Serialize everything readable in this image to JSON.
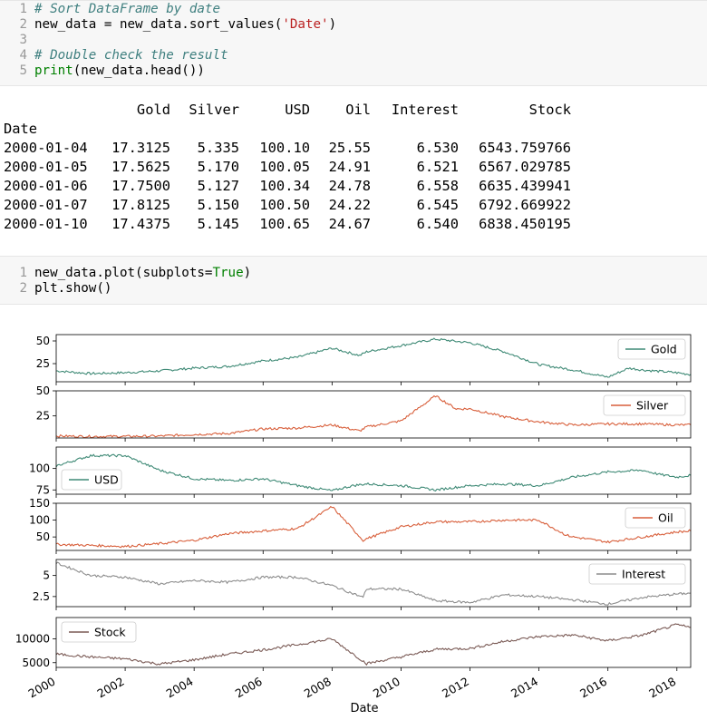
{
  "cell1": {
    "lines": [
      {
        "num": "1",
        "comment": "# Sort DataFrame by date"
      },
      {
        "num": "2",
        "code_pre": "new_data = new_data.sort_values(",
        "string": "'Date'",
        "code_post": ")"
      },
      {
        "num": "3"
      },
      {
        "num": "4",
        "comment": "# Double check the result"
      },
      {
        "num": "5",
        "code_kw": "print",
        "code_post": "(new_data.head())"
      }
    ]
  },
  "table": {
    "columns": [
      "Gold",
      "Silver",
      "USD",
      "Oil",
      "Interest",
      "Stock"
    ],
    "index_name": "Date",
    "rows": [
      [
        "2000-01-04",
        "17.3125",
        "5.335",
        "100.10",
        "25.55",
        "6.530",
        "6543.759766"
      ],
      [
        "2000-01-05",
        "17.5625",
        "5.170",
        "100.05",
        "24.91",
        "6.521",
        "6567.029785"
      ],
      [
        "2000-01-06",
        "17.7500",
        "5.127",
        "100.34",
        "24.78",
        "6.558",
        "6635.439941"
      ],
      [
        "2000-01-07",
        "17.8125",
        "5.150",
        "100.50",
        "24.22",
        "6.545",
        "6792.669922"
      ],
      [
        "2000-01-10",
        "17.4375",
        "5.145",
        "100.65",
        "24.67",
        "6.540",
        "6838.450195"
      ]
    ]
  },
  "cell2": {
    "lines": [
      {
        "num": "1",
        "code_pre": "new_data.plot(subplots=",
        "kw": "True",
        "code_post": ")"
      },
      {
        "num": "2",
        "code_pre": "plt.show()"
      }
    ]
  },
  "chart_data": {
    "type": "line",
    "subplots": true,
    "xlabel": "Date",
    "x_ticks": [
      "2000",
      "2002",
      "2004",
      "2006",
      "2008",
      "2010",
      "2012",
      "2014",
      "2016",
      "2018"
    ],
    "xlim": [
      2000.0,
      2018.4
    ],
    "series": [
      {
        "name": "Gold",
        "color": "#3f8a76",
        "legend": "top-right",
        "yticks": [
          25,
          50
        ],
        "ylim": [
          5,
          57
        ],
        "points": [
          [
            2000,
            17
          ],
          [
            2001,
            14
          ],
          [
            2002,
            15
          ],
          [
            2003,
            17
          ],
          [
            2004,
            20
          ],
          [
            2005,
            22
          ],
          [
            2006,
            28
          ],
          [
            2007,
            32
          ],
          [
            2008,
            42
          ],
          [
            2008.8,
            34
          ],
          [
            2009,
            38
          ],
          [
            2010,
            45
          ],
          [
            2011,
            52
          ],
          [
            2012,
            48
          ],
          [
            2013,
            38
          ],
          [
            2014,
            24
          ],
          [
            2015,
            18
          ],
          [
            2016,
            10
          ],
          [
            2016.6,
            20
          ],
          [
            2017,
            18
          ],
          [
            2018,
            15
          ],
          [
            2018.4,
            13
          ]
        ]
      },
      {
        "name": "Silver",
        "color": "#d85f3b",
        "legend": "top-right",
        "yticks": [
          25,
          50
        ],
        "ylim": [
          3,
          50
        ],
        "points": [
          [
            2000,
            5
          ],
          [
            2001,
            4.5
          ],
          [
            2002,
            4.6
          ],
          [
            2003,
            4.9
          ],
          [
            2004,
            6.5
          ],
          [
            2005,
            7.5
          ],
          [
            2006,
            12
          ],
          [
            2007,
            13
          ],
          [
            2008,
            16
          ],
          [
            2008.8,
            10
          ],
          [
            2009,
            14
          ],
          [
            2010,
            20
          ],
          [
            2011,
            45
          ],
          [
            2011.6,
            32
          ],
          [
            2012,
            32
          ],
          [
            2013,
            24
          ],
          [
            2014,
            19
          ],
          [
            2015,
            16
          ],
          [
            2016,
            17
          ],
          [
            2017,
            17
          ],
          [
            2018,
            16
          ],
          [
            2018.4,
            16
          ]
        ]
      },
      {
        "name": "USD",
        "color": "#3f8a76",
        "legend": "bottom-left",
        "yticks": [
          75,
          100
        ],
        "ylim": [
          70,
          125
        ],
        "points": [
          [
            2000,
            103
          ],
          [
            2001,
            115
          ],
          [
            2002,
            115
          ],
          [
            2003,
            98
          ],
          [
            2004,
            88
          ],
          [
            2005,
            86
          ],
          [
            2006,
            88
          ],
          [
            2007,
            80
          ],
          [
            2008,
            74
          ],
          [
            2008.6,
            80
          ],
          [
            2009,
            82
          ],
          [
            2010,
            80
          ],
          [
            2011,
            75
          ],
          [
            2012,
            80
          ],
          [
            2013,
            82
          ],
          [
            2014,
            80
          ],
          [
            2015,
            90
          ],
          [
            2016,
            96
          ],
          [
            2017,
            98
          ],
          [
            2017.5,
            93
          ],
          [
            2018,
            90
          ],
          [
            2018.4,
            92
          ]
        ]
      },
      {
        "name": "Oil",
        "color": "#d85f3b",
        "legend": "top-right",
        "yticks": [
          50,
          100,
          150
        ],
        "ylim": [
          10,
          150
        ],
        "points": [
          [
            2000,
            28
          ],
          [
            2001,
            25
          ],
          [
            2002,
            22
          ],
          [
            2003,
            30
          ],
          [
            2004,
            40
          ],
          [
            2005,
            60
          ],
          [
            2006,
            68
          ],
          [
            2007,
            75
          ],
          [
            2008,
            140
          ],
          [
            2008.9,
            40
          ],
          [
            2009,
            45
          ],
          [
            2010,
            80
          ],
          [
            2011,
            95
          ],
          [
            2012,
            95
          ],
          [
            2013,
            100
          ],
          [
            2014,
            100
          ],
          [
            2014.8,
            55
          ],
          [
            2015,
            50
          ],
          [
            2016,
            35
          ],
          [
            2017,
            50
          ],
          [
            2018,
            65
          ],
          [
            2018.4,
            68
          ]
        ]
      },
      {
        "name": "Interest",
        "color": "#8c8c8c",
        "legend": "top-right",
        "yticks": [
          2.5,
          5.0
        ],
        "ylim": [
          1.3,
          6.9
        ],
        "points": [
          [
            2000,
            6.5
          ],
          [
            2001,
            5.0
          ],
          [
            2002,
            4.8
          ],
          [
            2003,
            4.0
          ],
          [
            2004,
            4.4
          ],
          [
            2005,
            4.2
          ],
          [
            2006,
            4.8
          ],
          [
            2007,
            4.8
          ],
          [
            2008,
            3.8
          ],
          [
            2008.9,
            2.4
          ],
          [
            2009,
            3.4
          ],
          [
            2010,
            3.4
          ],
          [
            2011,
            2.0
          ],
          [
            2012,
            1.8
          ],
          [
            2013,
            2.7
          ],
          [
            2014,
            2.5
          ],
          [
            2015,
            2.1
          ],
          [
            2016,
            1.6
          ],
          [
            2017,
            2.4
          ],
          [
            2018,
            2.8
          ],
          [
            2018.4,
            2.9
          ]
        ]
      },
      {
        "name": "Stock",
        "color": "#7a5a55",
        "legend": "top-left",
        "yticks": [
          5000,
          10000
        ],
        "ylim": [
          4000,
          14500
        ],
        "points": [
          [
            2000,
            6800
          ],
          [
            2001,
            6200
          ],
          [
            2002,
            5800
          ],
          [
            2003,
            4700
          ],
          [
            2004,
            5600
          ],
          [
            2005,
            6800
          ],
          [
            2006,
            7700
          ],
          [
            2007,
            8800
          ],
          [
            2008,
            10000
          ],
          [
            2009,
            4800
          ],
          [
            2010,
            6200
          ],
          [
            2011,
            7800
          ],
          [
            2012,
            8000
          ],
          [
            2013,
            9500
          ],
          [
            2014,
            10500
          ],
          [
            2015,
            10800
          ],
          [
            2016,
            9600
          ],
          [
            2017,
            10800
          ],
          [
            2018,
            13000
          ],
          [
            2018.4,
            12400
          ]
        ]
      }
    ]
  }
}
